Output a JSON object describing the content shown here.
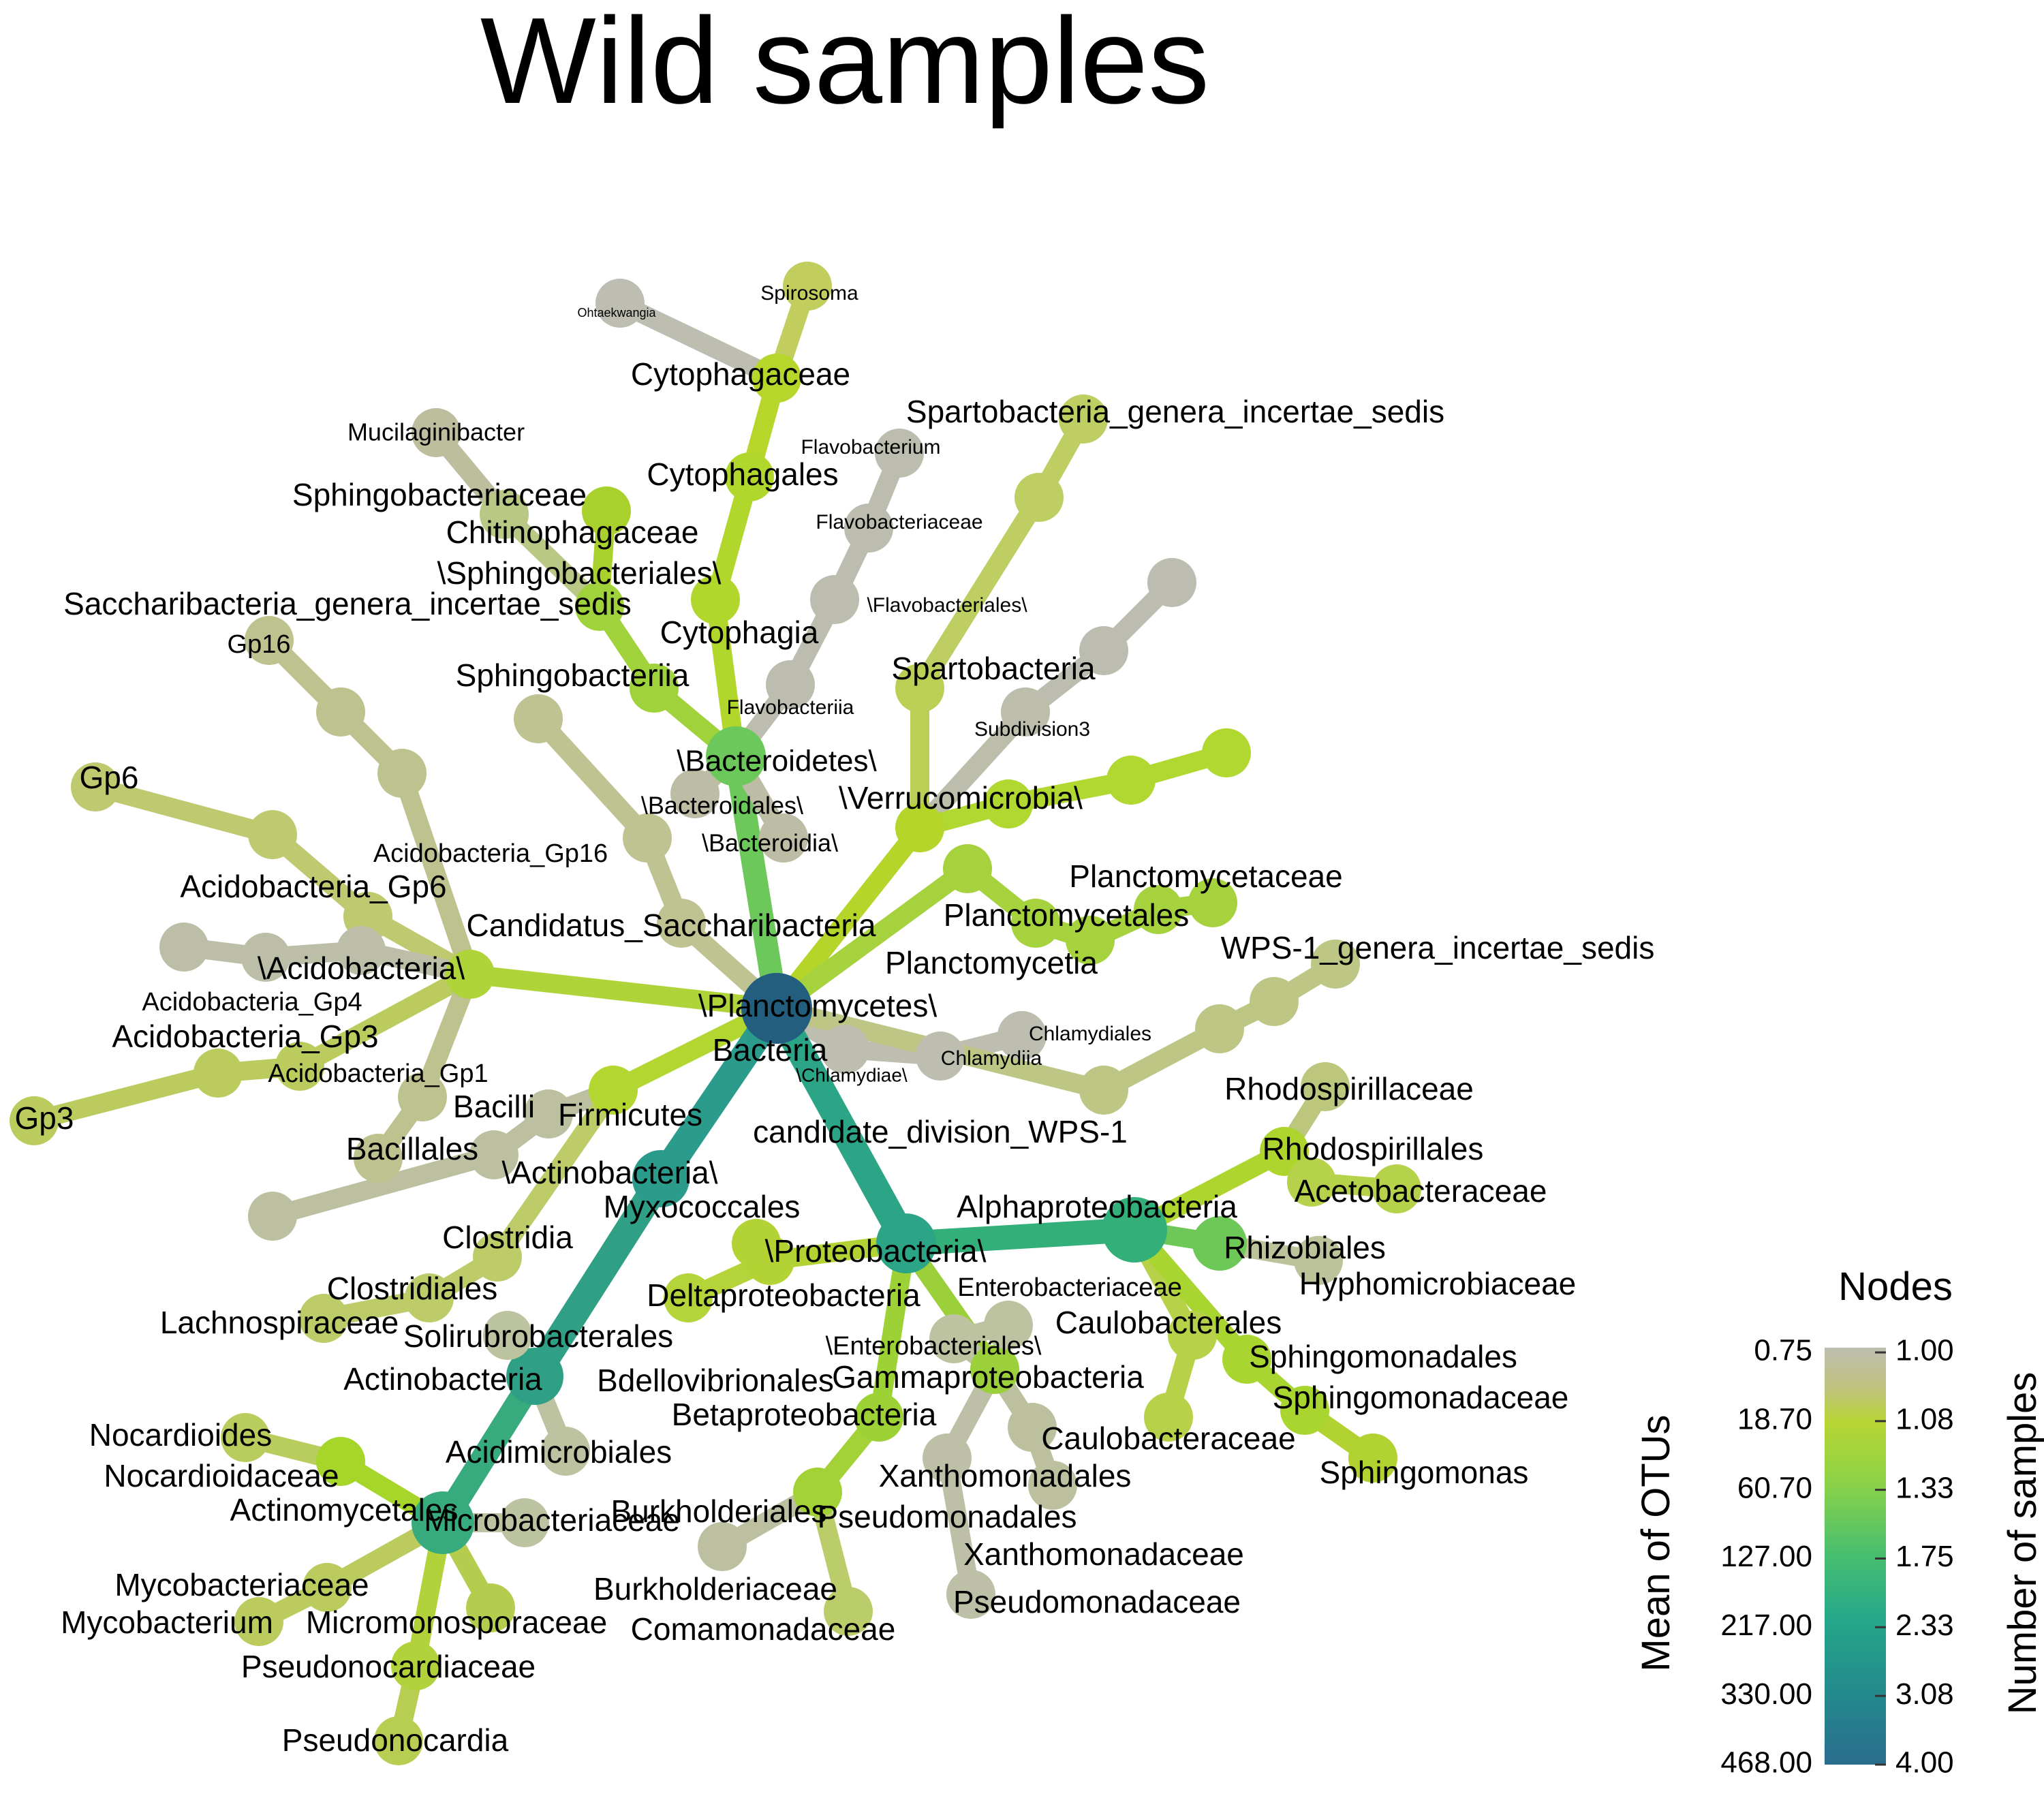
{
  "title": "Wild samples",
  "legend": {
    "title": "Nodes",
    "left_axis_title": "Mean of OTUs",
    "right_axis_title": "Number of samples",
    "left_ticks": [
      "0.75",
      "18.70",
      "60.70",
      "127.00",
      "217.00",
      "330.00",
      "468.00"
    ],
    "right_ticks": [
      "1.00",
      "1.08",
      "1.33",
      "1.75",
      "2.33",
      "3.08",
      "4.00"
    ],
    "gradient_colors": [
      "#BEBEB0",
      "#B7D533",
      "#8DD347",
      "#46BE70",
      "#25A78A",
      "#238B8C",
      "#2A6D8E"
    ]
  },
  "nodes": [
    {
      "id": "bacteria",
      "label": "Bacteria",
      "color": "#235E7E",
      "value": 4.0
    },
    {
      "id": "bacteroidetes",
      "label": "\\Bacteroidetes\\",
      "color": "#6CC85A",
      "value": 1.5
    },
    {
      "id": "bacteroidia",
      "label": "\\Bacteroidia\\",
      "color": "#BDBDA6",
      "value": 1.0
    },
    {
      "id": "bacteroidales",
      "label": "\\Bacteroidales\\",
      "color": "#BDBDA6",
      "value": 1.0
    },
    {
      "id": "sphingobacteriia",
      "label": "Sphingobacteriia",
      "color": "#9FD23B",
      "value": 1.2
    },
    {
      "id": "sphingobacteriales",
      "label": "\\Sphingobacteriales\\",
      "color": "#9FD23B",
      "value": 1.2
    },
    {
      "id": "chitinophagaceae",
      "label": "Chitinophagaceae",
      "color": "#A9D12E",
      "value": 1.1
    },
    {
      "id": "sphingobacteriaceae",
      "label": "Sphingobacteriaceae",
      "color": "#BAC886",
      "value": 1.0
    },
    {
      "id": "mucilaginibacter",
      "label": "Mucilaginibacter",
      "color": "#BDBE9E",
      "value": 1.0
    },
    {
      "id": "cytophagia",
      "label": "Cytophagia",
      "color": "#B1D62C",
      "value": 1.1
    },
    {
      "id": "cytophagales",
      "label": "Cytophagales",
      "color": "#B1D62C",
      "value": 1.1
    },
    {
      "id": "cytophagaceae",
      "label": "Cytophagaceae",
      "color": "#B7D62C",
      "value": 1.1
    },
    {
      "id": "spirosoma",
      "label": "Spirosoma",
      "color": "#C1CE5E",
      "value": 1.0
    },
    {
      "id": "ohtaekwangia",
      "label": "Ohtaekwangia",
      "color": "#BDBDB2",
      "value": 1.0
    },
    {
      "id": "flavobacteriia",
      "label": "Flavobacteriia",
      "color": "#BCBDAE",
      "value": 1.0
    },
    {
      "id": "flavobacteriales",
      "label": "\\Flavobacteriales\\",
      "color": "#BCBDAE",
      "value": 1.0
    },
    {
      "id": "flavobacteriaceae",
      "label": "Flavobacteriaceae",
      "color": "#BCBDAE",
      "value": 1.0
    },
    {
      "id": "flavobacterium",
      "label": "Flavobacterium",
      "color": "#BCBDAE",
      "value": 1.0
    },
    {
      "id": "verrucomicrobia",
      "label": "\\Verrucomicrobia\\",
      "color": "#B5D52A",
      "value": 1.1
    },
    {
      "id": "spartobacteria",
      "label": "Spartobacteria",
      "color": "#BBCF55",
      "value": 1.0
    },
    {
      "id": "spartobacteria_genera",
      "label": "Spartobacteria_genera_incertae_sedis",
      "color": "#BECE62",
      "value": 1.0
    },
    {
      "id": "subdivision3",
      "label": "Subdivision3",
      "color": "#BCBEAB",
      "value": 1.0
    },
    {
      "id": "planctomycetes",
      "label": "\\Planctomycetes\\",
      "color": "#A5D23D",
      "value": 1.2
    },
    {
      "id": "planctomycetia",
      "label": "Planctomycetia",
      "color": "#A5D23D",
      "value": 1.2
    },
    {
      "id": "planctomycetales",
      "label": "Planctomycetales",
      "color": "#A5D23D",
      "value": 1.2
    },
    {
      "id": "planctomycetaceae",
      "label": "Planctomycetaceae",
      "color": "#A5D23D",
      "value": 1.2
    },
    {
      "id": "chlamydiae",
      "label": "\\Chlamydiae\\",
      "color": "#BDBDB0",
      "value": 1.0
    },
    {
      "id": "chlamydiia",
      "label": "Chlamydiia",
      "color": "#BDBDB0",
      "value": 1.0
    },
    {
      "id": "chlamydiales",
      "label": "Chlamydiales",
      "color": "#BDBDB0",
      "value": 1.0
    },
    {
      "id": "wps1",
      "label": "candidate_division_WPS-1",
      "color": "#BDC685",
      "value": 1.0
    },
    {
      "id": "wps1_genera",
      "label": "WPS-1_genera_incertae_sedis",
      "color": "#BDC685",
      "value": 1.0
    },
    {
      "id": "saccharibacteria",
      "label": "Candidatus_Saccharibacteria",
      "color": "#BFC291",
      "value": 1.0
    },
    {
      "id": "saccharibacteria_genera",
      "label": "Saccharibacteria_genera_incertae_sedis",
      "color": "#BFC291",
      "value": 1.0
    },
    {
      "id": "acidobacteria",
      "label": "\\Acidobacteria\\",
      "color": "#AED43A",
      "value": 1.1
    },
    {
      "id": "acidobacteria_gp16",
      "label": "Acidobacteria_Gp16",
      "color": "#BEC28E",
      "value": 1.0
    },
    {
      "id": "gp16",
      "label": "Gp16",
      "color": "#BEC28E",
      "value": 1.0
    },
    {
      "id": "acidobacteria_gp6",
      "label": "Acidobacteria_Gp6",
      "color": "#BEC970",
      "value": 1.0
    },
    {
      "id": "gp6",
      "label": "Gp6",
      "color": "#BEC970",
      "value": 1.0
    },
    {
      "id": "acidobacteria_gp4",
      "label": "Acidobacteria_Gp4",
      "color": "#BDBEA8",
      "value": 1.0
    },
    {
      "id": "acidobacteria_gp3",
      "label": "Acidobacteria_Gp3",
      "color": "#BBCB5E",
      "value": 1.0
    },
    {
      "id": "gp3",
      "label": "Gp3",
      "color": "#BBCB5E",
      "value": 1.0
    },
    {
      "id": "acidobacteria_gp1",
      "label": "Acidobacteria_Gp1",
      "color": "#BDC28F",
      "value": 1.0
    },
    {
      "id": "firmicutes",
      "label": "Firmicutes",
      "color": "#B3D630",
      "value": 1.1
    },
    {
      "id": "bacilli",
      "label": "Bacilli",
      "color": "#BDC0A0",
      "value": 1.0
    },
    {
      "id": "bacillales",
      "label": "Bacillales",
      "color": "#BDC0A0",
      "value": 1.0
    },
    {
      "id": "clostridia",
      "label": "Clostridia",
      "color": "#BECB69",
      "value": 1.0
    },
    {
      "id": "clostridiales",
      "label": "Clostridiales",
      "color": "#BECB69",
      "value": 1.0
    },
    {
      "id": "lachnospiraceae",
      "label": "Lachnospiraceae",
      "color": "#BECB69",
      "value": 1.0
    },
    {
      "id": "actinobacteria_phylum",
      "label": "\\Actinobacteria\\",
      "color": "#2B9C8B",
      "value": 2.5
    },
    {
      "id": "actinobacteria",
      "label": "Actinobacteria",
      "color": "#2F9F86",
      "value": 2.4
    },
    {
      "id": "solirubrobacterales",
      "label": "Solirubrobacterales",
      "color": "#BCC3A0",
      "value": 1.0
    },
    {
      "id": "acidimicrobiales",
      "label": "Acidimicrobiales",
      "color": "#BDC2A0",
      "value": 1.0
    },
    {
      "id": "actinomycetales",
      "label": "Actinomycetales",
      "color": "#37AB7D",
      "value": 2.0
    },
    {
      "id": "nocardioidaceae",
      "label": "Nocardioidaceae",
      "color": "#A6D62A",
      "value": 1.1
    },
    {
      "id": "nocardioides",
      "label": "Nocardioides",
      "color": "#B9CC5E",
      "value": 1.0
    },
    {
      "id": "microbacteriaceae",
      "label": "Microbacteriaceae",
      "color": "#BCC3A0",
      "value": 1.0
    },
    {
      "id": "mycobacteriaceae",
      "label": "Mycobacteriaceae",
      "color": "#BCCB5E",
      "value": 1.0
    },
    {
      "id": "mycobacterium",
      "label": "Mycobacterium",
      "color": "#BCCB5E",
      "value": 1.0
    },
    {
      "id": "micromonosporaceae",
      "label": "Micromonosporaceae",
      "color": "#B5CD4F",
      "value": 1.0
    },
    {
      "id": "pseudonocardiaceae",
      "label": "Pseudonocardiaceae",
      "color": "#B2D23B",
      "value": 1.1
    },
    {
      "id": "pseudonocardia",
      "label": "Pseudonocardia",
      "color": "#B7CE52",
      "value": 1.0
    },
    {
      "id": "proteobacteria",
      "label": "\\Proteobacteria\\",
      "color": "#2BA585",
      "value": 2.2
    },
    {
      "id": "deltaproteobacteria",
      "label": "Deltaproteobacteria",
      "color": "#B3D233",
      "value": 1.1
    },
    {
      "id": "myxococcales",
      "label": "Myxococcales",
      "color": "#B3D233",
      "value": 1.1
    },
    {
      "id": "bdellovibrionales",
      "label": "Bdellovibrionales",
      "color": "#B5D43A",
      "value": 1.1
    },
    {
      "id": "alphaproteobacteria",
      "label": "Alphaproteobacteria",
      "color": "#33AF79",
      "value": 2.0
    },
    {
      "id": "rhodospirillales",
      "label": "Rhodospirillales",
      "color": "#AED42E",
      "value": 1.1
    },
    {
      "id": "rhodospirillaceae",
      "label": "Rhodospirillaceae",
      "color": "#BCC67D",
      "value": 1.0
    },
    {
      "id": "acetobacteraceae",
      "label": "Acetobacteraceae",
      "color": "#B6D14A",
      "value": 1.0
    },
    {
      "id": "rhizobiales",
      "label": "Rhizobiales",
      "color": "#6DC858",
      "value": 1.5
    },
    {
      "id": "hyphomicrobiaceae",
      "label": "Hyphomicrobiaceae",
      "color": "#BCC29A",
      "value": 1.0
    },
    {
      "id": "caulobacterales",
      "label": "Caulobacterales",
      "color": "#B7D248",
      "value": 1.0
    },
    {
      "id": "caulobacteraceae",
      "label": "Caulobacteraceae",
      "color": "#B7D248",
      "value": 1.0
    },
    {
      "id": "sphingomonadales",
      "label": "Sphingomonadales",
      "color": "#A8D530",
      "value": 1.1
    },
    {
      "id": "sphingomonadaceae",
      "label": "Sphingomonadaceae",
      "color": "#A8D530",
      "value": 1.1
    },
    {
      "id": "sphingomonas",
      "label": "Sphingomonas",
      "color": "#B2D232",
      "value": 1.1
    },
    {
      "id": "gammaproteobacteria",
      "label": "Gammaproteobacteria",
      "color": "#9BD03A",
      "value": 1.3
    },
    {
      "id": "enterobacteriales",
      "label": "\\Enterobacteriales\\",
      "color": "#BDC3A0",
      "value": 1.0
    },
    {
      "id": "enterobacteriaceae",
      "label": "Enterobacteriaceae",
      "color": "#BDC3A0",
      "value": 1.0
    },
    {
      "id": "xanthomonadales",
      "label": "Xanthomonadales",
      "color": "#BDC09F",
      "value": 1.0
    },
    {
      "id": "xanthomonadaceae",
      "label": "Xanthomonadaceae",
      "color": "#BDC09F",
      "value": 1.0
    },
    {
      "id": "pseudomonadales",
      "label": "Pseudomonadales",
      "color": "#BDBFA6",
      "value": 1.0
    },
    {
      "id": "pseudomonadaceae",
      "label": "Pseudomonadaceae",
      "color": "#BDBFA6",
      "value": 1.0
    },
    {
      "id": "betaproteobacteria",
      "label": "Betaproteobacteria",
      "color": "#9DD237",
      "value": 1.3
    },
    {
      "id": "burkholderiales",
      "label": "Burkholderiales",
      "color": "#A2D236",
      "value": 1.2
    },
    {
      "id": "burkholderiaceae",
      "label": "Burkholderiaceae",
      "color": "#BDC0A0",
      "value": 1.0
    },
    {
      "id": "comamonadaceae",
      "label": "Comamonadaceae",
      "color": "#BBCC6A",
      "value": 1.0
    }
  ],
  "extra_nodes": [
    {
      "id": "verruco_extra1",
      "label": "",
      "color": "#B0D830",
      "value": 1.1
    },
    {
      "id": "verruco_extra2",
      "label": "",
      "color": "#B0D830",
      "value": 1.1
    },
    {
      "id": "verruco_extra3",
      "label": "",
      "color": "#B0D830",
      "value": 1.1
    },
    {
      "id": "subdiv_extra1",
      "label": "",
      "color": "#BCBDB0",
      "value": 1.0
    },
    {
      "id": "subdiv_extra2",
      "label": "",
      "color": "#BCBDB0",
      "value": 1.0
    },
    {
      "id": "sparto_extra1",
      "label": "",
      "color": "#BECE62",
      "value": 1.0
    },
    {
      "id": "sacchar_extra1",
      "label": "",
      "color": "#BFC291",
      "value": 1.0
    },
    {
      "id": "gp4_extra1",
      "label": "",
      "color": "#BDBEA8",
      "value": 1.0
    },
    {
      "id": "gp4_extra2",
      "label": "",
      "color": "#BDBEA8",
      "value": 1.0
    },
    {
      "id": "gp3_extra1",
      "label": "",
      "color": "#BBCB5E",
      "value": 1.0
    },
    {
      "id": "gp1_extra1",
      "label": "",
      "color": "#BDC28F",
      "value": 1.0
    },
    {
      "id": "bacillales_extra1",
      "label": "",
      "color": "#BDC0A0",
      "value": 1.0
    },
    {
      "id": "wps_extra1",
      "label": "",
      "color": "#BDC685",
      "value": 1.0
    },
    {
      "id": "wps_extra2",
      "label": "",
      "color": "#BDC685",
      "value": 1.0
    },
    {
      "id": "planct_extra1",
      "label": "",
      "color": "#A5D23D",
      "value": 1.2
    },
    {
      "id": "gp16_extra1",
      "label": "",
      "color": "#BEC28E",
      "value": 1.0
    },
    {
      "id": "gp6_extra1",
      "label": "",
      "color": "#BEC970",
      "value": 1.0
    },
    {
      "id": "acetob_extra1",
      "label": "",
      "color": "#B6D14A",
      "value": 1.0
    }
  ]
}
